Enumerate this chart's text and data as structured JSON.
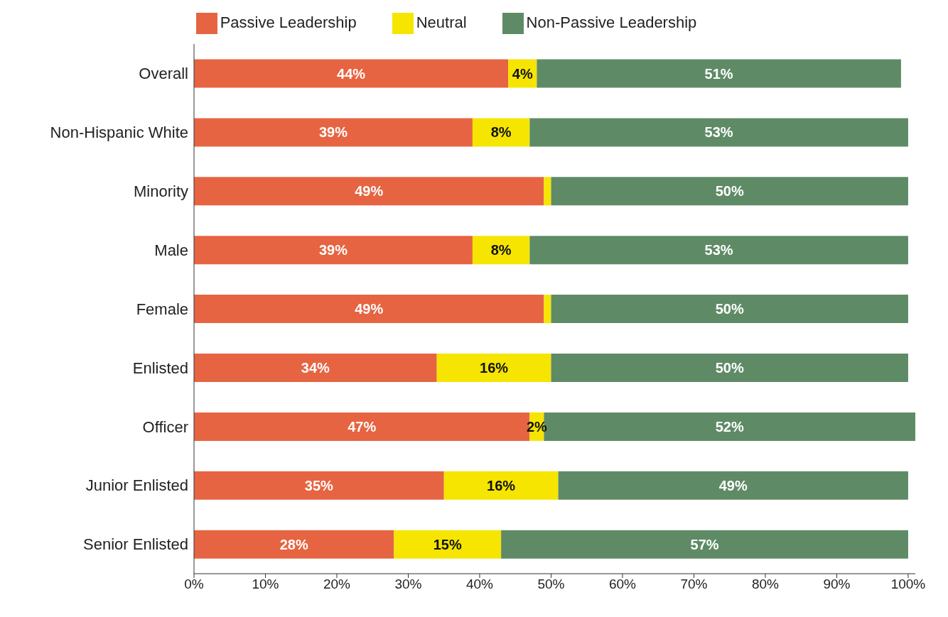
{
  "chart_data": {
    "type": "bar",
    "orientation": "horizontal",
    "stacked": true,
    "categories": [
      "Overall",
      "Non-Hispanic White",
      "Minority",
      "Male",
      "Female",
      "Enlisted",
      "Officer",
      "Junior Enlisted",
      "Senior Enlisted"
    ],
    "series": [
      {
        "name": "Passive Leadership",
        "color": "#e66441",
        "values": [
          44,
          39,
          49,
          39,
          49,
          34,
          47,
          35,
          28
        ],
        "value_labels": [
          "44%",
          "39%",
          "49%",
          "39%",
          "49%",
          "34%",
          "47%",
          "35%",
          "28%"
        ]
      },
      {
        "name": "Neutral",
        "color": "#f5e500",
        "values": [
          4,
          8,
          1,
          8,
          1,
          16,
          2,
          16,
          15
        ],
        "value_labels": [
          "4%",
          "8%",
          null,
          "8%",
          null,
          "16%",
          "2%",
          "16%",
          "15%"
        ]
      },
      {
        "name": "Non-Passive Leadership",
        "color": "#5e8b66",
        "values": [
          51,
          53,
          50,
          53,
          50,
          50,
          52,
          49,
          57
        ],
        "value_labels": [
          "51%",
          "53%",
          "50%",
          "53%",
          "50%",
          "50%",
          "52%",
          "49%",
          "57%"
        ]
      }
    ],
    "xlim": [
      0,
      101
    ],
    "xticks": [
      {
        "value": 0,
        "label": "0%"
      },
      {
        "value": 10,
        "label": "10%"
      },
      {
        "value": 20,
        "label": "20%"
      },
      {
        "value": 30,
        "label": "30%"
      },
      {
        "value": 40,
        "label": "40%"
      },
      {
        "value": 50,
        "label": "50%"
      },
      {
        "value": 60,
        "label": "60%"
      },
      {
        "value": 70,
        "label": "70%"
      },
      {
        "value": 80,
        "label": "80%"
      },
      {
        "value": 90,
        "label": "90%"
      },
      {
        "value": 100,
        "label": "100%"
      }
    ],
    "legend": "top",
    "grid": false
  }
}
